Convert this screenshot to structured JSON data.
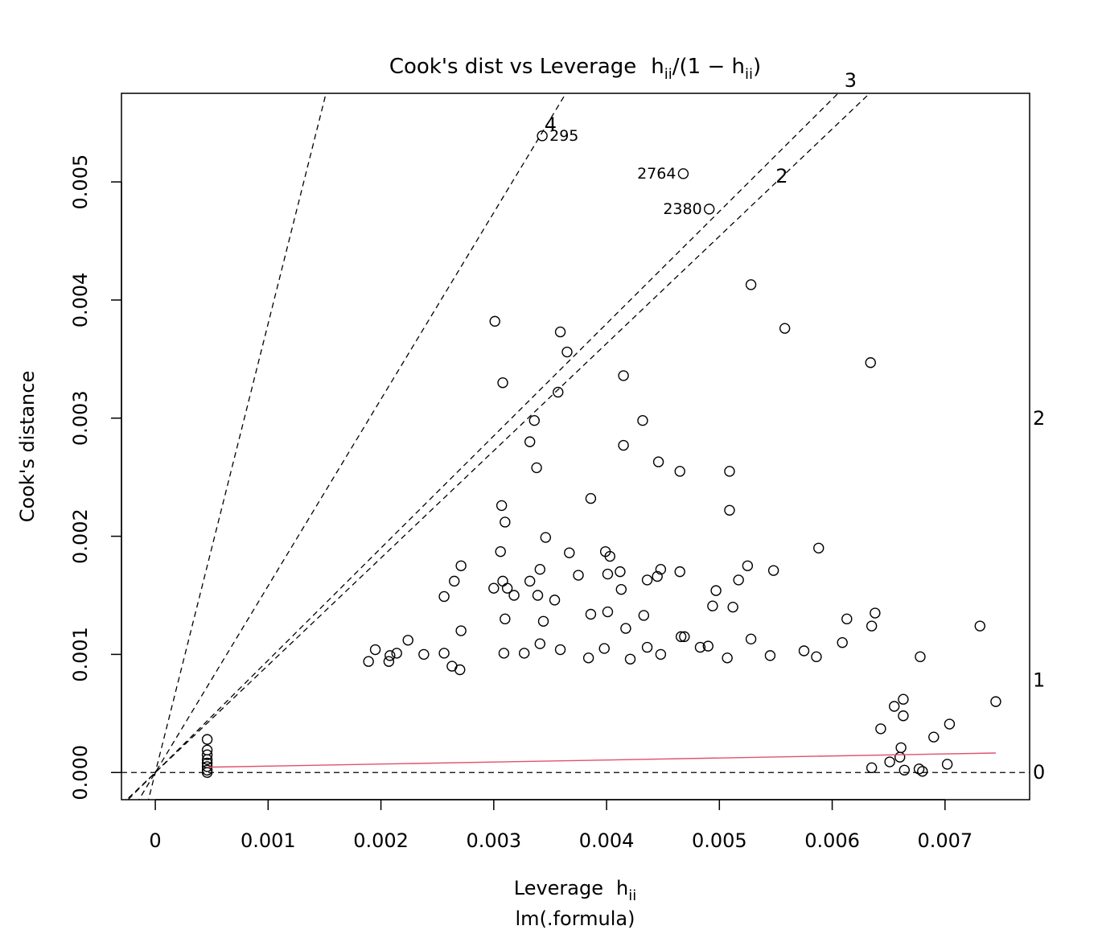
{
  "chart_data": {
    "type": "scatter",
    "title_main": "Cook's dist vs Leverage",
    "title_h": "h",
    "title_sub": "ii",
    "title_frac": "/(1 − h",
    "title_close": ")",
    "xlabel": "Leverage",
    "xlabel_h": "h",
    "xlabel_sub": "ii",
    "subtitle": "lm(.formula)",
    "ylabel": "Cook's distance",
    "xlim": [
      -0.0003,
      0.00775
    ],
    "ylim": [
      -0.00023,
      0.00575
    ],
    "x_ticks": [
      {
        "value": 0,
        "label": "0"
      },
      {
        "value": 0.001,
        "label": "0.001"
      },
      {
        "value": 0.002,
        "label": "0.002"
      },
      {
        "value": 0.003,
        "label": "0.003"
      },
      {
        "value": 0.004,
        "label": "0.004"
      },
      {
        "value": 0.005,
        "label": "0.005"
      },
      {
        "value": 0.006,
        "label": "0.006"
      },
      {
        "value": 0.007,
        "label": "0.007"
      }
    ],
    "y_ticks": [
      {
        "value": 0,
        "label": "0.000"
      },
      {
        "value": 0.001,
        "label": "0.001"
      },
      {
        "value": 0.002,
        "label": "0.002"
      },
      {
        "value": 0.003,
        "label": "0.003"
      },
      {
        "value": 0.004,
        "label": "0.004"
      },
      {
        "value": 0.005,
        "label": "0.005"
      }
    ],
    "contours": [
      {
        "label": "4",
        "slope": 1.58,
        "label_x": 0.00342
      },
      {
        "label": "3",
        "slope": 0.95,
        "label_x": 0.00608
      },
      {
        "label": "2",
        "slope": 0.908,
        "label_x": 0.00547
      },
      {
        "label": "1",
        "slope": 3.8,
        "label_x": null
      }
    ],
    "right_labels": [
      {
        "label": "2",
        "y": 0.003
      },
      {
        "label": "1",
        "y": 0.00078
      },
      {
        "label": "0",
        "y": 0.0
      }
    ],
    "smooth_line": {
      "color": "#DF536B",
      "x": [
        0.00046,
        0.00745
      ],
      "y": [
        4.5e-05,
        0.000165
      ]
    },
    "labeled_points": [
      {
        "label": "295",
        "x": 0.00343,
        "y": 0.00539,
        "side": "right"
      },
      {
        "label": "2764",
        "x": 0.00468,
        "y": 0.00507,
        "side": "left"
      },
      {
        "label": "2380",
        "x": 0.00491,
        "y": 0.00477,
        "side": "left"
      }
    ],
    "points": [
      [
        0.00301,
        0.00382
      ],
      [
        0.00359,
        0.00373
      ],
      [
        0.00365,
        0.00356
      ],
      [
        0.00308,
        0.0033
      ],
      [
        0.00336,
        0.00298
      ],
      [
        0.00357,
        0.00322
      ],
      [
        0.00415,
        0.00336
      ],
      [
        0.00432,
        0.00298
      ],
      [
        0.00332,
        0.0028
      ],
      [
        0.00338,
        0.00258
      ],
      [
        0.00415,
        0.00277
      ],
      [
        0.00446,
        0.00263
      ],
      [
        0.00465,
        0.00255
      ],
      [
        0.00509,
        0.00255
      ],
      [
        0.00528,
        0.00413
      ],
      [
        0.00558,
        0.00376
      ],
      [
        0.00634,
        0.00347
      ],
      [
        0.00307,
        0.00226
      ],
      [
        0.0031,
        0.00212
      ],
      [
        0.00386,
        0.00232
      ],
      [
        0.00509,
        0.00222
      ],
      [
        0.00346,
        0.00199
      ],
      [
        0.00367,
        0.00186
      ],
      [
        0.00306,
        0.00187
      ],
      [
        0.00399,
        0.00187
      ],
      [
        0.00403,
        0.00183
      ],
      [
        0.00588,
        0.0019
      ],
      [
        0.00271,
        0.00175
      ],
      [
        0.00265,
        0.00162
      ],
      [
        0.00256,
        0.00149
      ],
      [
        0.003,
        0.00156
      ],
      [
        0.00308,
        0.00162
      ],
      [
        0.00312,
        0.00156
      ],
      [
        0.00318,
        0.0015
      ],
      [
        0.00332,
        0.00162
      ],
      [
        0.00341,
        0.00172
      ],
      [
        0.00339,
        0.0015
      ],
      [
        0.00354,
        0.00146
      ],
      [
        0.00375,
        0.00167
      ],
      [
        0.00401,
        0.00168
      ],
      [
        0.00412,
        0.0017
      ],
      [
        0.00413,
        0.00155
      ],
      [
        0.00436,
        0.00163
      ],
      [
        0.00448,
        0.00172
      ],
      [
        0.00445,
        0.00166
      ],
      [
        0.00465,
        0.0017
      ],
      [
        0.00525,
        0.00175
      ],
      [
        0.00517,
        0.00163
      ],
      [
        0.00497,
        0.00154
      ],
      [
        0.00494,
        0.00141
      ],
      [
        0.00512,
        0.0014
      ],
      [
        0.00548,
        0.00171
      ],
      [
        0.00271,
        0.0012
      ],
      [
        0.0031,
        0.0013
      ],
      [
        0.00344,
        0.00128
      ],
      [
        0.00386,
        0.00134
      ],
      [
        0.00401,
        0.00136
      ],
      [
        0.00417,
        0.00122
      ],
      [
        0.00433,
        0.00133
      ],
      [
        0.00469,
        0.00115
      ],
      [
        0.00638,
        0.00135
      ],
      [
        0.00635,
        0.00124
      ],
      [
        0.00613,
        0.0013
      ],
      [
        0.00731,
        0.00124
      ],
      [
        0.00195,
        0.00104
      ],
      [
        0.00208,
        0.00099
      ],
      [
        0.00224,
        0.00112
      ],
      [
        0.00214,
        0.00101
      ],
      [
        0.00256,
        0.00101
      ],
      [
        0.00238,
        0.001
      ],
      [
        0.00189,
        0.00094
      ],
      [
        0.00207,
        0.00094
      ],
      [
        0.00263,
        0.0009
      ],
      [
        0.0027,
        0.00087
      ],
      [
        0.00309,
        0.00101
      ],
      [
        0.00327,
        0.00101
      ],
      [
        0.00341,
        0.00109
      ],
      [
        0.00359,
        0.00104
      ],
      [
        0.00384,
        0.00097
      ],
      [
        0.00398,
        0.00105
      ],
      [
        0.00421,
        0.00096
      ],
      [
        0.00436,
        0.00106
      ],
      [
        0.00448,
        0.001
      ],
      [
        0.00466,
        0.00115
      ],
      [
        0.00483,
        0.00106
      ],
      [
        0.0049,
        0.00107
      ],
      [
        0.00507,
        0.00097
      ],
      [
        0.00528,
        0.00113
      ],
      [
        0.00545,
        0.00099
      ],
      [
        0.00575,
        0.00103
      ],
      [
        0.00586,
        0.00098
      ],
      [
        0.00609,
        0.0011
      ],
      [
        0.00678,
        0.00098
      ],
      [
        0.00745,
        0.0006
      ],
      [
        0.00704,
        0.00041
      ],
      [
        0.0069,
        0.0003
      ],
      [
        0.00663,
        0.00062
      ],
      [
        0.00655,
        0.00056
      ],
      [
        0.00643,
        0.00037
      ],
      [
        0.00663,
        0.00048
      ],
      [
        0.00661,
        0.00021
      ],
      [
        0.0066,
        0.00013
      ],
      [
        0.00677,
        3e-05
      ],
      [
        0.00702,
        7e-05
      ],
      [
        0.0068,
        1e-05
      ],
      [
        0.00664,
        2e-05
      ],
      [
        0.00651,
        9e-05
      ],
      [
        0.00635,
        4e-05
      ],
      [
        0.00046,
        0.00028
      ],
      [
        0.00046,
        0.00019
      ],
      [
        0.00046,
        0.00015
      ],
      [
        0.00046,
        0.00011
      ],
      [
        0.00046,
        8e-05
      ],
      [
        0.00046,
        5e-05
      ],
      [
        0.00046,
        2e-05
      ],
      [
        0.00046,
        0.0
      ]
    ]
  }
}
